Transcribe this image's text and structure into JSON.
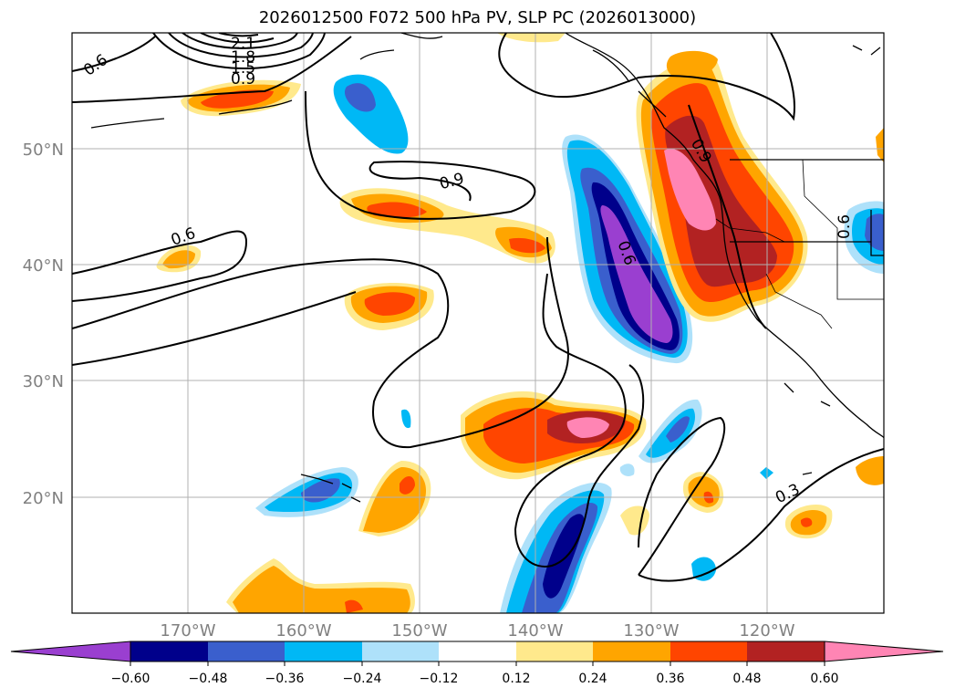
{
  "title": "2026012500 F072 500 hPa PV, SLP PC (2026013000)",
  "longitude_labels": [
    "170°W",
    "160°W",
    "150°W",
    "140°W",
    "130°W",
    "120°W"
  ],
  "latitude_labels": [
    "50°N",
    "40°N",
    "30°N",
    "20°N"
  ],
  "colorbar": {
    "colors": [
      "#9a3fd0",
      "#00008b",
      "#3a5fcd",
      "#00b8f5",
      "#aee1fa",
      "#ffffff",
      "#ffe98c",
      "#ffa500",
      "#ff4500",
      "#b22222",
      "#ff85b4"
    ],
    "tick_labels": [
      "−0.60",
      "−0.48",
      "−0.36",
      "−0.24",
      "−0.12",
      "0.12",
      "0.24",
      "0.36",
      "0.48",
      "0.60"
    ]
  },
  "contour_labels": {
    "top_06": "0.6",
    "top_21": "2.1",
    "top_18": "1.8",
    "top_15": "1.5",
    "top_12": "1.2",
    "top_09": "0.9",
    "mid_09": "0.9",
    "left_06": "0.6",
    "center_06": "0.6",
    "right_09": "0.9",
    "right_06": "0.6",
    "bottom_03": "0.3"
  }
}
